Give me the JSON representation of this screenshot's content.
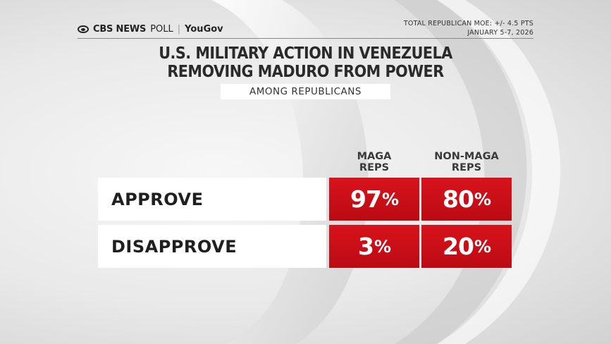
{
  "header": {
    "brand_cbs": "CBS NEWS",
    "brand_poll": "POLL",
    "brand_sep": "|",
    "brand_yougov": "YouGov",
    "moe": "TOTAL REPUBLICAN MOE: +/- 4.5 PTS",
    "dates": "JANUARY 5-7, 2026"
  },
  "chart_data": {
    "type": "table",
    "title": [
      "U.S. MILITARY ACTION IN VENEZUELA",
      "REMOVING MADURO FROM POWER"
    ],
    "subtitle": "AMONG REPUBLICANS",
    "columns": [
      {
        "line1": "MAGA",
        "line2": "REPS"
      },
      {
        "line1": "NON-MAGA",
        "line2": "REPS"
      }
    ],
    "rows": [
      {
        "label": "APPROVE",
        "values": [
          97,
          80
        ]
      },
      {
        "label": "DISAPPROVE",
        "values": [
          3,
          20
        ]
      }
    ],
    "unit": "%",
    "colors": {
      "cell": "#c90f18",
      "label_bg": "#ffffff"
    }
  }
}
